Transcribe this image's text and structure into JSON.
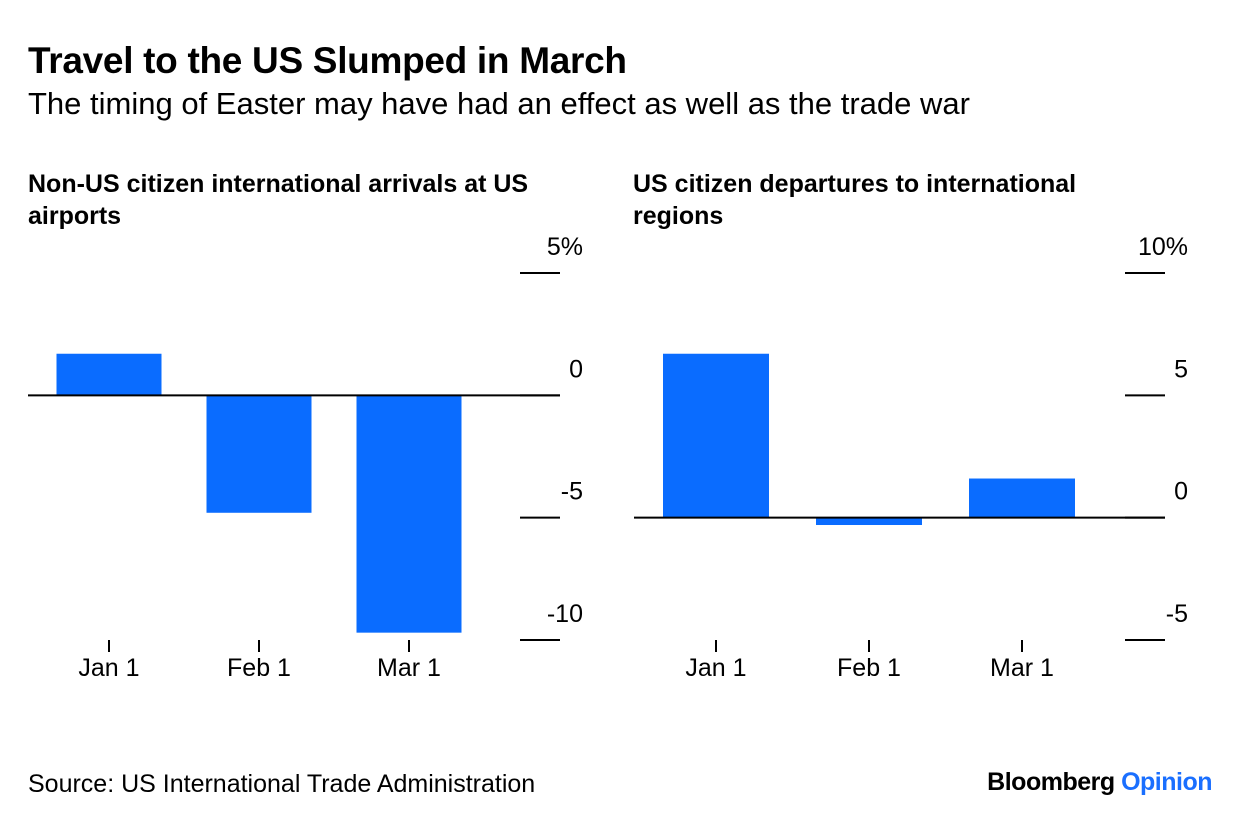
{
  "header": {
    "title": "Travel to the US Slumped in March",
    "subtitle": "The timing of Easter may have had an effect as well as the trade war"
  },
  "footer": {
    "source": "Source: US International Trade Administration",
    "brand_name": "Bloomberg",
    "brand_suffix": "Opinion"
  },
  "colors": {
    "bar": "#0a6cff",
    "axis": "#000000",
    "brand_accent": "#1a6fff"
  },
  "chart_data": [
    {
      "type": "bar",
      "title": "Non-US citizen international arrivals at US airports",
      "categories": [
        "Jan 1",
        "Feb 1",
        "Mar 1"
      ],
      "values": [
        1.7,
        -4.8,
        -9.7
      ],
      "ylim": [
        -10,
        5
      ],
      "yticks": [
        5,
        0,
        -5,
        -10
      ],
      "ytick_labels": [
        "5%",
        "0",
        "-5",
        "-10"
      ],
      "axis_side": "right",
      "grid": false
    },
    {
      "type": "bar",
      "title": "US citizen departures to international regions",
      "categories": [
        "Jan 1",
        "Feb 1",
        "Mar 1"
      ],
      "values": [
        6.7,
        -0.3,
        1.6
      ],
      "ylim": [
        -5,
        10
      ],
      "yticks": [
        10,
        5,
        0,
        -5
      ],
      "ytick_labels": [
        "10%",
        "5",
        "0",
        "-5"
      ],
      "axis_side": "right",
      "grid": false
    }
  ]
}
